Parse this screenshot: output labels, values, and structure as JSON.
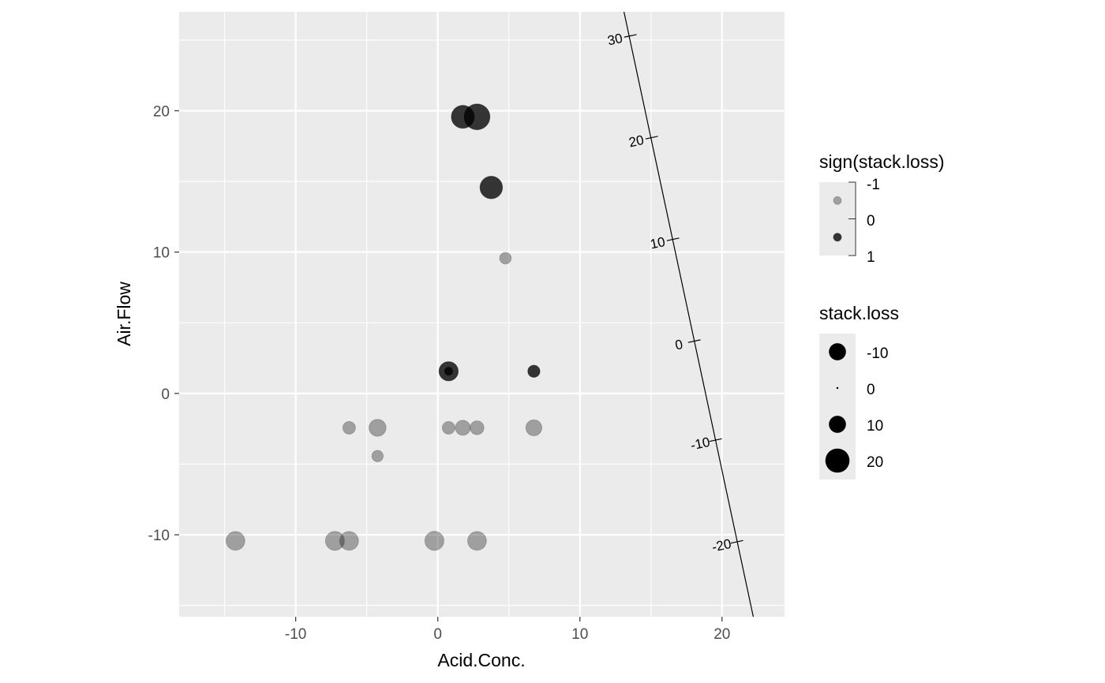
{
  "chart_data": {
    "type": "scatter",
    "title": "",
    "xlabel": "Acid.Conc.",
    "ylabel": "Air.Flow",
    "xlim": [
      -18.2,
      24.4
    ],
    "ylim": [
      -15.8,
      27.0
    ],
    "x_ticks": [
      -10,
      0,
      10,
      20
    ],
    "y_ticks": [
      -10,
      0,
      10,
      20
    ],
    "x_tick_labels": [
      "-10",
      "0",
      "10",
      "20"
    ],
    "y_tick_labels": [
      "-10",
      "0",
      "10",
      "20"
    ],
    "grid": true,
    "legend_position": "right",
    "points": [
      {
        "x": 2.76,
        "y": 19.57,
        "stack_loss": 20.5,
        "sign": 1
      },
      {
        "x": 1.76,
        "y": 19.57,
        "stack_loss": 16.2,
        "sign": 1
      },
      {
        "x": 3.76,
        "y": 14.57,
        "stack_loss": 15.6,
        "sign": 1
      },
      {
        "x": 4.76,
        "y": 9.57,
        "stack_loss": -4.2,
        "sign": -1
      },
      {
        "x": 0.76,
        "y": 1.57,
        "stack_loss": 11.4,
        "sign": 1
      },
      {
        "x": 0.76,
        "y": 1.57,
        "stack_loss": 2.0,
        "sign": 1
      },
      {
        "x": 6.76,
        "y": 1.57,
        "stack_loss": 4.5,
        "sign": 1
      },
      {
        "x": -6.24,
        "y": -2.43,
        "stack_loss": -5.0,
        "sign": -1
      },
      {
        "x": -4.24,
        "y": -2.43,
        "stack_loss": -9.0,
        "sign": -1
      },
      {
        "x": 0.76,
        "y": -2.43,
        "stack_loss": -5.0,
        "sign": -1
      },
      {
        "x": 1.76,
        "y": -2.43,
        "stack_loss": -7.0,
        "sign": -1
      },
      {
        "x": 2.76,
        "y": -2.43,
        "stack_loss": -6.0,
        "sign": -1
      },
      {
        "x": 6.76,
        "y": -2.43,
        "stack_loss": -8.0,
        "sign": -1
      },
      {
        "x": -4.24,
        "y": -4.43,
        "stack_loss": -4.0,
        "sign": -1
      },
      {
        "x": -14.24,
        "y": -10.43,
        "stack_loss": -11.0,
        "sign": -1
      },
      {
        "x": -7.24,
        "y": -10.43,
        "stack_loss": -11.2,
        "sign": -1
      },
      {
        "x": -6.24,
        "y": -10.43,
        "stack_loss": -11.0,
        "sign": -1
      },
      {
        "x": -0.24,
        "y": -10.43,
        "stack_loss": -11.3,
        "sign": -1
      },
      {
        "x": 2.76,
        "y": -10.43,
        "stack_loss": -11.0,
        "sign": -1
      }
    ],
    "biplot_axis": {
      "from": [
        13.1,
        27.0
      ],
      "to": [
        22.2,
        -15.8
      ],
      "ticks": [
        {
          "label": "30",
          "x": 13.55,
          "y": 25.3
        },
        {
          "label": "20",
          "x": 15.05,
          "y": 18.1
        },
        {
          "label": "10",
          "x": 16.55,
          "y": 10.9
        },
        {
          "label": "0",
          "x": 18.05,
          "y": 3.7
        },
        {
          "label": "-10",
          "x": 19.55,
          "y": -3.3
        },
        {
          "label": "-20",
          "x": 21.05,
          "y": -10.5
        }
      ]
    },
    "legends": [
      {
        "title": "sign(stack.loss)",
        "labels": [
          "-1",
          "0",
          "1"
        ],
        "keys": [
          {
            "sign": -1,
            "position": -0.5
          },
          {
            "sign": 1,
            "position": 0.5
          }
        ]
      },
      {
        "title": "stack.loss",
        "labels": [
          "-10",
          "0",
          "10",
          "20"
        ],
        "key_values": [
          -10,
          0,
          10,
          20
        ]
      }
    ],
    "colors": {
      "panel_background": "#ebebeb",
      "grid_major": "#ffffff",
      "point_fill": "#000000",
      "legend_key_background": "#ebebeb"
    }
  }
}
